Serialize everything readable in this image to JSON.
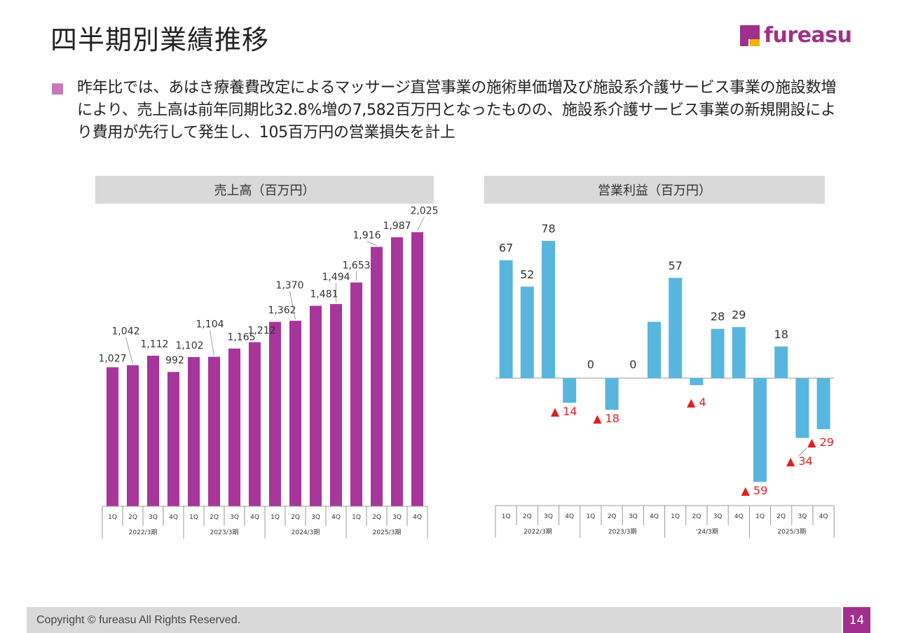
{
  "page": {
    "title": "四半期別業績推移",
    "summary": "昨年比では、あはき療養費改定によるマッサージ直営事業の施術単価増及び施設系介護サービス事業の施設数増により、売上高は前年同期比32.8%増の7,582百万円となったものの、施設系介護サービス事業の新規開設により費用が先行して発生し、105百万円の営業損失を計上",
    "footer": "Copyright © fureasu All Rights Reserved.",
    "page_number": "14",
    "logo_text": "fureasu"
  },
  "colors": {
    "sales_bar": "#a8359a",
    "op_bar": "#58b6de",
    "negative_label": "#e11f1f",
    "header_bg": "#d9d9d9",
    "accent": "#a0308c"
  },
  "chart_data": [
    {
      "type": "bar",
      "title": "売上高（百万円）",
      "categories": [
        "1Q",
        "2Q",
        "3Q",
        "4Q",
        "1Q",
        "2Q",
        "3Q",
        "4Q",
        "1Q",
        "2Q",
        "3Q",
        "4Q",
        "1Q",
        "2Q",
        "3Q",
        "4Q"
      ],
      "groups": [
        "2022/3期",
        "2023/3期",
        "2024/3期",
        "2025/3期"
      ],
      "values": [
        1027,
        1042,
        1112,
        992,
        1102,
        1104,
        1165,
        1212,
        1362,
        1370,
        1481,
        1494,
        1653,
        1916,
        1987,
        2025
      ],
      "labels": [
        "1,027",
        "1,042",
        "1,112",
        "992",
        "1,102",
        "1,104",
        "1,165",
        "1,212",
        "1,362",
        "1,370",
        "1,481",
        "1,494",
        "1,653",
        "1,916",
        "1,987",
        "2,025"
      ],
      "ylim": [
        0,
        2100
      ]
    },
    {
      "type": "bar",
      "title": "営業利益（百万円）",
      "categories": [
        "1Q",
        "2Q",
        "3Q",
        "4Q",
        "1Q",
        "2Q",
        "3Q",
        "4Q",
        "1Q",
        "2Q",
        "3Q",
        "4Q",
        "1Q",
        "2Q",
        "3Q",
        "4Q"
      ],
      "groups": [
        "2022/3期",
        "2023/3期",
        "'24/3期",
        "2025/3期"
      ],
      "values": [
        67,
        52,
        78,
        -14,
        0,
        -18,
        0,
        32,
        57,
        -4,
        28,
        29,
        -59,
        18,
        -34,
        -29
      ],
      "labels": [
        "67",
        "52",
        "78",
        "▲ 14",
        "0",
        "▲ 18",
        "0",
        "",
        "57",
        "▲ 4",
        "28",
        "29",
        "▲ 59",
        "18",
        "▲ 34",
        "▲ 29"
      ],
      "ylim": [
        -60,
        80
      ]
    }
  ]
}
